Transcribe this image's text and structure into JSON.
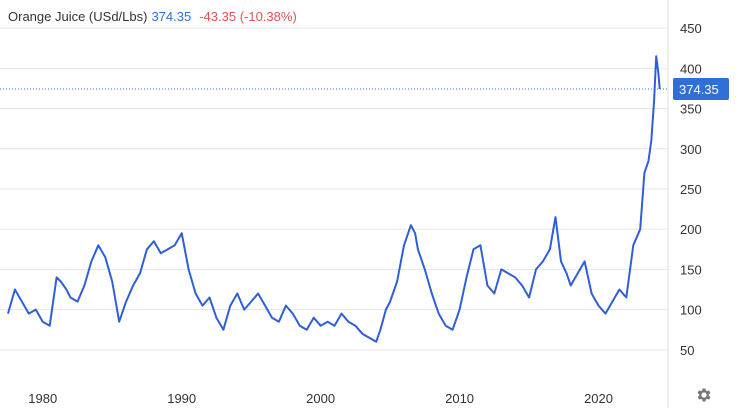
{
  "header": {
    "name": "Orange Juice (USd/Lbs)",
    "price": "374.35",
    "change": "-43.35 (-10.38%)"
  },
  "colors": {
    "line": "#2f5fd8",
    "price_badge": "#2f6fd6",
    "grid": "#e6e6e6",
    "change_negative": "#e05252"
  },
  "icons": {
    "settings": "gear-icon"
  },
  "chart_data": {
    "type": "line",
    "title": "",
    "xlabel": "",
    "ylabel": "",
    "xlim": [
      1977.5,
      2025.0
    ],
    "ylim": [
      10,
      475
    ],
    "x_ticks": [
      1980,
      1990,
      2000,
      2010,
      2020
    ],
    "y_ticks": [
      50,
      100,
      150,
      200,
      250,
      300,
      350,
      400,
      450
    ],
    "grid": "horizontal",
    "last_value": 374.35,
    "last_value_label": "374.35",
    "series": [
      {
        "name": "",
        "x": [
          1977.5,
          1978.0,
          1978.5,
          1979.0,
          1979.5,
          1980.0,
          1980.5,
          1981.0,
          1981.3,
          1981.7,
          1982.0,
          1982.5,
          1983.0,
          1983.5,
          1984.0,
          1984.5,
          1985.0,
          1985.5,
          1986.0,
          1986.5,
          1987.0,
          1987.5,
          1988.0,
          1988.5,
          1989.0,
          1989.5,
          1990.0,
          1990.5,
          1991.0,
          1991.5,
          1992.0,
          1992.5,
          1993.0,
          1993.5,
          1994.0,
          1994.5,
          1995.0,
          1995.5,
          1996.0,
          1996.5,
          1997.0,
          1997.5,
          1998.0,
          1998.5,
          1999.0,
          1999.5,
          2000.0,
          2000.5,
          2001.0,
          2001.5,
          2002.0,
          2002.5,
          2003.0,
          2003.5,
          2004.0,
          2004.3,
          2004.7,
          2005.0,
          2005.5,
          2006.0,
          2006.5,
          2006.8,
          2007.0,
          2007.5,
          2008.0,
          2008.5,
          2009.0,
          2009.5,
          2010.0,
          2010.5,
          2011.0,
          2011.5,
          2012.0,
          2012.5,
          2013.0,
          2013.5,
          2014.0,
          2014.5,
          2015.0,
          2015.5,
          2016.0,
          2016.5,
          2016.9,
          2017.3,
          2017.7,
          2018.0,
          2018.5,
          2019.0,
          2019.5,
          2020.0,
          2020.5,
          2021.0,
          2021.5,
          2022.0,
          2022.5,
          2023.0,
          2023.3,
          2023.6,
          2023.8,
          2024.0,
          2024.15,
          2024.3,
          2024.4
        ],
        "values": [
          95,
          125,
          110,
          95,
          100,
          85,
          80,
          140,
          135,
          125,
          115,
          110,
          130,
          160,
          180,
          165,
          135,
          85,
          110,
          130,
          145,
          175,
          185,
          170,
          175,
          180,
          195,
          150,
          120,
          105,
          115,
          90,
          75,
          105,
          120,
          100,
          110,
          120,
          105,
          90,
          85,
          105,
          95,
          80,
          75,
          90,
          80,
          85,
          80,
          95,
          85,
          80,
          70,
          65,
          60,
          75,
          100,
          110,
          135,
          180,
          205,
          195,
          175,
          150,
          120,
          95,
          80,
          75,
          100,
          140,
          175,
          180,
          130,
          120,
          150,
          145,
          140,
          130,
          115,
          150,
          160,
          175,
          215,
          160,
          145,
          130,
          145,
          160,
          120,
          105,
          95,
          110,
          125,
          115,
          180,
          200,
          270,
          285,
          310,
          360,
          415,
          395,
          374.35
        ]
      }
    ]
  }
}
